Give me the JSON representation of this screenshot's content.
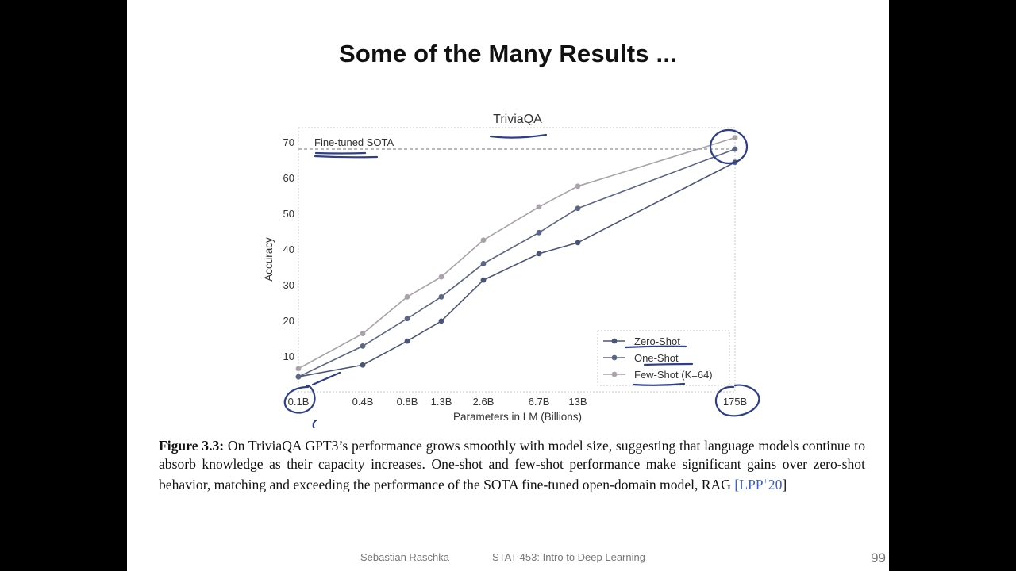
{
  "slide": {
    "title": "Some of the Many Results ...",
    "footer_author": "Sebastian Raschka",
    "footer_course": "STAT 453: Intro to Deep Learning",
    "page_number": "99"
  },
  "caption": {
    "label": "Figure 3.3:",
    "text": " On TriviaQA GPT3’s performance grows smoothly with model size, suggesting that language models continue to absorb knowledge as their capacity increases. One-shot and few-shot performance make significant gains over zero-shot behavior, matching and exceeding the performance of the SOTA fine-tuned open-domain model, RAG ",
    "ref_open": "[",
    "ref_main": "LPP",
    "ref_sup": "+",
    "ref_year": "20",
    "ref_close": "]"
  },
  "chart_data": {
    "type": "line",
    "title": "TriviaQA",
    "xlabel": "Parameters in LM (Billions)",
    "ylabel": "Accuracy",
    "categories": [
      "0.1B",
      "0.4B",
      "0.8B",
      "1.3B",
      "2.6B",
      "6.7B",
      "13B",
      "175B"
    ],
    "ylim": [
      0,
      74
    ],
    "yticks": [
      10,
      20,
      30,
      40,
      50,
      60,
      70
    ],
    "series": [
      {
        "name": "Zero-Shot",
        "color": "#4a5578",
        "values": [
          4.2,
          7.5,
          14.2,
          19.8,
          31.3,
          38.7,
          41.8,
          64.3
        ]
      },
      {
        "name": "One-Shot",
        "color": "#5b6585",
        "values": [
          4.2,
          12.8,
          20.5,
          26.6,
          35.9,
          44.6,
          51.4,
          68.0
        ]
      },
      {
        "name": "Few-Shot",
        "name_suffix": " (K=64)",
        "color": "#a9a2aa",
        "values": [
          6.5,
          16.3,
          26.6,
          32.2,
          42.5,
          51.8,
          57.6,
          71.2
        ]
      }
    ],
    "reference_line": {
      "label": "Fine-tuned SOTA",
      "value": 68.0
    },
    "legend_position": "lower-right",
    "grid": false
  }
}
